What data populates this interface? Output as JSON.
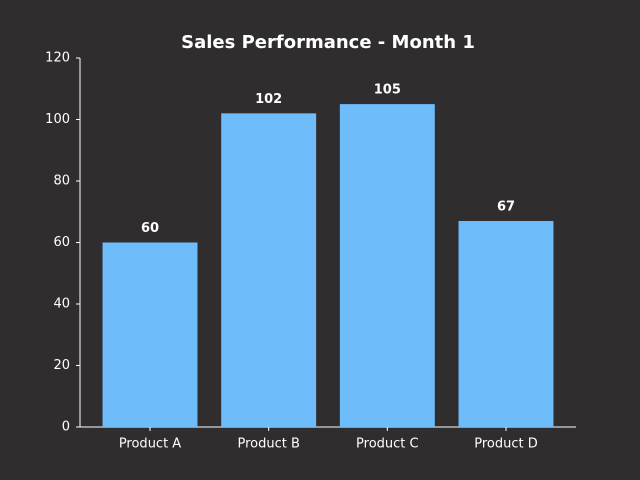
{
  "chart_data": {
    "type": "bar",
    "title": "Sales Performance - Month 1",
    "categories": [
      "Product A",
      "Product B",
      "Product C",
      "Product D"
    ],
    "values": [
      60,
      102,
      105,
      67
    ],
    "color": "#6fbcfb",
    "ylim": [
      0,
      120
    ],
    "yticks": [
      0,
      20,
      40,
      60,
      80,
      100,
      120
    ],
    "grid": false
  }
}
